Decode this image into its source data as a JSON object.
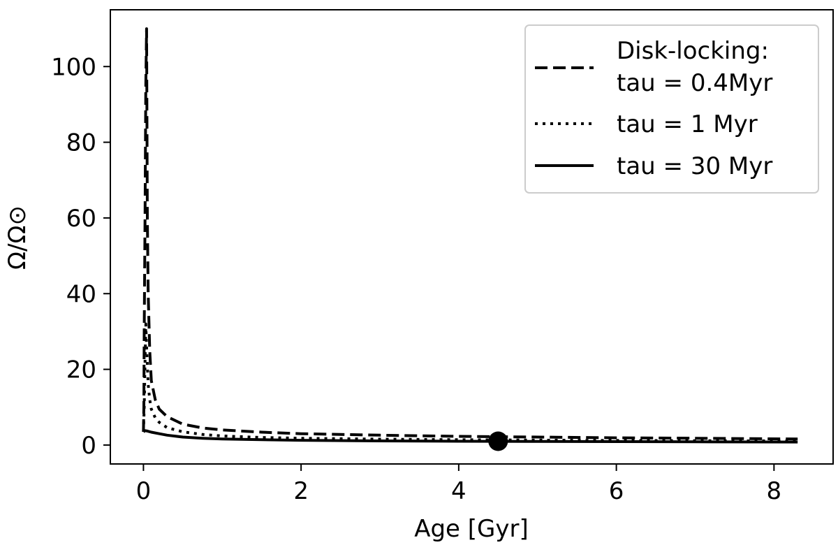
{
  "chart_data": {
    "type": "line",
    "xlabel": "Age [Gyr]",
    "ylabel": "Ω/Ω⊙",
    "xlim": [
      -0.42,
      8.75
    ],
    "ylim": [
      -5,
      115
    ],
    "xticks": [
      0,
      2,
      4,
      6,
      8
    ],
    "yticks": [
      0,
      20,
      40,
      60,
      80,
      100
    ],
    "grid": false,
    "legend": {
      "placement": "top-right",
      "entries": [
        {
          "label_line1": "Disk-locking:",
          "label_line2": "tau = 0.4Myr",
          "style": "dashed"
        },
        {
          "label_line1": "tau = 1 Myr",
          "label_line2": "",
          "style": "dotted"
        },
        {
          "label_line1": "tau = 30 Myr",
          "label_line2": "",
          "style": "solid"
        }
      ]
    },
    "series": [
      {
        "style": "dashed",
        "x": [
          0.0,
          0.005,
          0.01,
          0.02,
          0.03,
          0.04,
          0.05,
          0.06,
          0.08,
          0.1,
          0.15,
          0.2,
          0.3,
          0.5,
          0.75,
          1.0,
          1.5,
          2.0,
          3.0,
          4.0,
          5.0,
          6.0,
          7.0,
          8.3
        ],
        "y": [
          3.5,
          10,
          30,
          60,
          95,
          110,
          60,
          40,
          25,
          17,
          12,
          9.5,
          7.5,
          5.5,
          4.5,
          4.0,
          3.4,
          3.0,
          2.6,
          2.3,
          2.1,
          1.9,
          1.8,
          1.6
        ]
      },
      {
        "style": "dotted",
        "x": [
          0.0,
          0.01,
          0.02,
          0.03,
          0.04,
          0.06,
          0.08,
          0.1,
          0.15,
          0.2,
          0.3,
          0.5,
          0.75,
          1.0,
          1.5,
          2.0,
          3.0,
          4.0,
          5.0,
          6.0,
          7.0,
          8.3
        ],
        "y": [
          3.5,
          10,
          22,
          32,
          26,
          16,
          12,
          9.5,
          7.2,
          6.0,
          4.6,
          3.5,
          2.8,
          2.4,
          2.0,
          1.8,
          1.55,
          1.4,
          1.3,
          1.2,
          1.15,
          1.05
        ]
      },
      {
        "style": "solid",
        "x": [
          0.0,
          0.02,
          0.05,
          0.1,
          0.2,
          0.3,
          0.5,
          0.75,
          1.0,
          1.5,
          2.0,
          3.0,
          4.0,
          5.0,
          6.0,
          7.0,
          8.3
        ],
        "y": [
          3.5,
          3.8,
          3.7,
          3.4,
          3.0,
          2.6,
          2.1,
          1.8,
          1.6,
          1.4,
          1.25,
          1.1,
          1.0,
          0.95,
          0.9,
          0.85,
          0.8
        ]
      }
    ],
    "marker": {
      "x": 4.5,
      "y": 1.0
    }
  }
}
